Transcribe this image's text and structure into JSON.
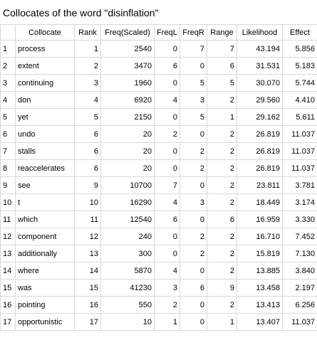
{
  "title": "Collocates of the word \"disinflation\"",
  "table": {
    "columns": [
      "",
      "Collocate",
      "Rank",
      "Freq(Scaled)",
      "FreqL",
      "FreqR",
      "Range",
      "Likelihood",
      "Effect"
    ],
    "rows": [
      {
        "idx": "1",
        "collocate": "process",
        "rank": "1",
        "freq": "2540",
        "freql": "0",
        "freqr": "7",
        "range": "7",
        "likelihood": "43.194",
        "effect": "5.856"
      },
      {
        "idx": "2",
        "collocate": "extent",
        "rank": "2",
        "freq": "3470",
        "freql": "6",
        "freqr": "0",
        "range": "6",
        "likelihood": "31.531",
        "effect": "5.183"
      },
      {
        "idx": "3",
        "collocate": "continuing",
        "rank": "3",
        "freq": "1960",
        "freql": "0",
        "freqr": "5",
        "range": "5",
        "likelihood": "30.070",
        "effect": "5.744"
      },
      {
        "idx": "4",
        "collocate": "don",
        "rank": "4",
        "freq": "6920",
        "freql": "4",
        "freqr": "3",
        "range": "2",
        "likelihood": "29.560",
        "effect": "4.410"
      },
      {
        "idx": "5",
        "collocate": "yet",
        "rank": "5",
        "freq": "2150",
        "freql": "0",
        "freqr": "5",
        "range": "1",
        "likelihood": "29.162",
        "effect": "5.611"
      },
      {
        "idx": "6",
        "collocate": "undo",
        "rank": "6",
        "freq": "20",
        "freql": "2",
        "freqr": "0",
        "range": "2",
        "likelihood": "26.819",
        "effect": "11.037"
      },
      {
        "idx": "7",
        "collocate": "stalls",
        "rank": "6",
        "freq": "20",
        "freql": "0",
        "freqr": "2",
        "range": "2",
        "likelihood": "26.819",
        "effect": "11.037"
      },
      {
        "idx": "8",
        "collocate": "reaccelerates",
        "rank": "6",
        "freq": "20",
        "freql": "0",
        "freqr": "2",
        "range": "2",
        "likelihood": "26.819",
        "effect": "11.037"
      },
      {
        "idx": "9",
        "collocate": "see",
        "rank": "9",
        "freq": "10700",
        "freql": "7",
        "freqr": "0",
        "range": "2",
        "likelihood": "23.811",
        "effect": "3.781"
      },
      {
        "idx": "10",
        "collocate": "t",
        "rank": "10",
        "freq": "16290",
        "freql": "4",
        "freqr": "3",
        "range": "2",
        "likelihood": "18.449",
        "effect": "3.174"
      },
      {
        "idx": "11",
        "collocate": "which",
        "rank": "11",
        "freq": "12540",
        "freql": "6",
        "freqr": "0",
        "range": "6",
        "likelihood": "16.959",
        "effect": "3.330"
      },
      {
        "idx": "12",
        "collocate": "component",
        "rank": "12",
        "freq": "240",
        "freql": "0",
        "freqr": "2",
        "range": "2",
        "likelihood": "16.710",
        "effect": "7.452"
      },
      {
        "idx": "13",
        "collocate": "additionally",
        "rank": "13",
        "freq": "300",
        "freql": "0",
        "freqr": "2",
        "range": "2",
        "likelihood": "15.819",
        "effect": "7.130"
      },
      {
        "idx": "14",
        "collocate": "where",
        "rank": "14",
        "freq": "5870",
        "freql": "4",
        "freqr": "0",
        "range": "2",
        "likelihood": "13.885",
        "effect": "3.840"
      },
      {
        "idx": "15",
        "collocate": "was",
        "rank": "15",
        "freq": "41230",
        "freql": "3",
        "freqr": "6",
        "range": "9",
        "likelihood": "13.458",
        "effect": "2.197"
      },
      {
        "idx": "16",
        "collocate": "pointing",
        "rank": "16",
        "freq": "550",
        "freql": "2",
        "freqr": "0",
        "range": "2",
        "likelihood": "13.413",
        "effect": "6.256"
      },
      {
        "idx": "17",
        "collocate": "opportunistic",
        "rank": "17",
        "freq": "10",
        "freql": "1",
        "freqr": "0",
        "range": "1",
        "likelihood": "13.407",
        "effect": "11.037"
      }
    ]
  }
}
